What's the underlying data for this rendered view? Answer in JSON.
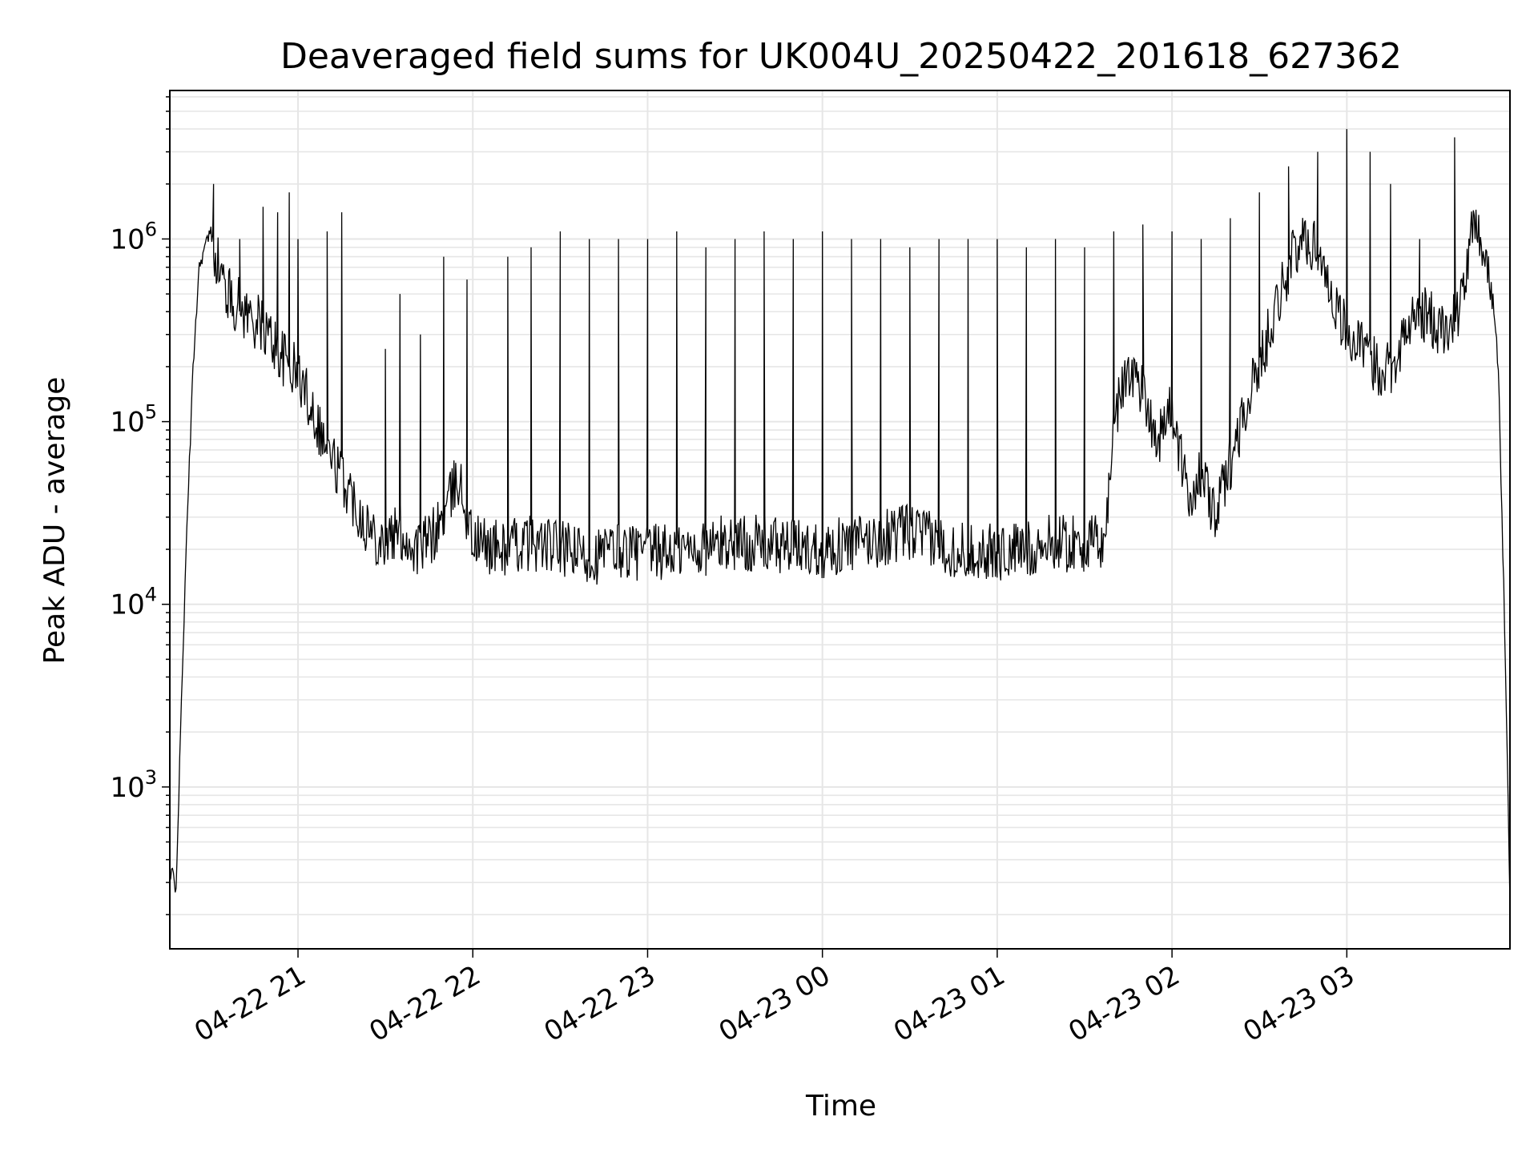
{
  "chart_data": {
    "type": "line",
    "title": "Deaveraged field sums for UK004U_20250422_201618_627362",
    "xlabel": "Time",
    "ylabel": "Peak ADU - average",
    "yscale": "log",
    "xlim": [
      "2025-04-22 20:16",
      "2025-04-23 03:56"
    ],
    "ylim": [
      130,
      6500000
    ],
    "grid": true,
    "x_ticks": [
      {
        "value": "2025-04-22 21:00",
        "label": "04-22 21"
      },
      {
        "value": "2025-04-22 22:00",
        "label": "04-22 22"
      },
      {
        "value": "2025-04-22 23:00",
        "label": "04-22 23"
      },
      {
        "value": "2025-04-23 00:00",
        "label": "04-23 00"
      },
      {
        "value": "2025-04-23 01:00",
        "label": "04-23 01"
      },
      {
        "value": "2025-04-23 02:00",
        "label": "04-23 02"
      },
      {
        "value": "2025-04-23 03:00",
        "label": "04-23 03"
      }
    ],
    "y_ticks": [
      {
        "value": 1000,
        "label": "10",
        "exp": "3"
      },
      {
        "value": 10000,
        "label": "10",
        "exp": "4"
      },
      {
        "value": 100000,
        "label": "10",
        "exp": "5"
      },
      {
        "value": 1000000,
        "label": "10",
        "exp": "6"
      }
    ],
    "series": [
      {
        "color": "#000000",
        "x": [
          "2025-04-22 20:16",
          "2025-04-22 20:17",
          "2025-04-22 20:18",
          "2025-04-22 20:19",
          "2025-04-22 20:20",
          "2025-04-22 20:22",
          "2025-04-22 20:24",
          "2025-04-22 20:26",
          "2025-04-22 20:28",
          "2025-04-22 20:30",
          "2025-04-22 20:32",
          "2025-04-22 20:34",
          "2025-04-22 20:36",
          "2025-04-22 20:38",
          "2025-04-22 20:42",
          "2025-04-22 20:46",
          "2025-04-22 20:50",
          "2025-04-22 20:55",
          "2025-04-22 21:00",
          "2025-04-22 21:05",
          "2025-04-22 21:10",
          "2025-04-22 21:15",
          "2025-04-22 21:20",
          "2025-04-22 21:25",
          "2025-04-22 21:30",
          "2025-04-22 21:35",
          "2025-04-22 21:40",
          "2025-04-22 21:45",
          "2025-04-22 21:50",
          "2025-04-22 21:55",
          "2025-04-22 22:00",
          "2025-04-22 22:10",
          "2025-04-22 22:20",
          "2025-04-22 22:30",
          "2025-04-22 22:40",
          "2025-04-22 22:50",
          "2025-04-22 23:00",
          "2025-04-22 23:15",
          "2025-04-22 23:30",
          "2025-04-22 23:45",
          "2025-04-23 00:00",
          "2025-04-23 00:15",
          "2025-04-23 00:30",
          "2025-04-23 00:45",
          "2025-04-23 01:00",
          "2025-04-23 01:10",
          "2025-04-23 01:20",
          "2025-04-23 01:30",
          "2025-04-23 01:37",
          "2025-04-23 01:40",
          "2025-04-23 01:45",
          "2025-04-23 01:50",
          "2025-04-23 01:55",
          "2025-04-23 02:00",
          "2025-04-23 02:05",
          "2025-04-23 02:10",
          "2025-04-23 02:15",
          "2025-04-23 02:20",
          "2025-04-23 02:25",
          "2025-04-23 02:30",
          "2025-04-23 02:35",
          "2025-04-23 02:40",
          "2025-04-23 02:45",
          "2025-04-23 02:50",
          "2025-04-23 02:55",
          "2025-04-23 03:00",
          "2025-04-23 03:05",
          "2025-04-23 03:10",
          "2025-04-23 03:15",
          "2025-04-23 03:20",
          "2025-04-23 03:25",
          "2025-04-23 03:30",
          "2025-04-23 03:35",
          "2025-04-23 03:40",
          "2025-04-23 03:44",
          "2025-04-23 03:47",
          "2025-04-23 03:50",
          "2025-04-23 03:52",
          "2025-04-23 03:54",
          "2025-04-23 03:56"
        ],
        "y": [
          300,
          350,
          250,
          800,
          3000,
          30000,
          200000,
          700000,
          900000,
          1100000,
          800000,
          600000,
          500000,
          450000,
          400000,
          350000,
          300000,
          220000,
          180000,
          120000,
          70000,
          50000,
          35000,
          25000,
          22000,
          25000,
          20000,
          22000,
          30000,
          50000,
          22000,
          20000,
          22000,
          20000,
          18000,
          20000,
          19000,
          20000,
          22000,
          21000,
          20000,
          22000,
          25000,
          20000,
          19000,
          20000,
          22000,
          21000,
          22000,
          100000,
          200000,
          150000,
          80000,
          120000,
          40000,
          50000,
          30000,
          60000,
          120000,
          200000,
          400000,
          700000,
          1000000,
          900000,
          500000,
          300000,
          250000,
          200000,
          200000,
          300000,
          400000,
          350000,
          300000,
          500000,
          1300000,
          900000,
          500000,
          200000,
          10000,
          250
        ],
        "spikes": [
          {
            "x": "2025-04-22 20:31",
            "y": 2000000
          },
          {
            "x": "2025-04-22 20:40",
            "y": 1000000
          },
          {
            "x": "2025-04-22 20:48",
            "y": 1500000
          },
          {
            "x": "2025-04-22 20:53",
            "y": 1400000
          },
          {
            "x": "2025-04-22 20:57",
            "y": 1800000
          },
          {
            "x": "2025-04-22 21:00",
            "y": 1000000
          },
          {
            "x": "2025-04-22 21:10",
            "y": 1100000
          },
          {
            "x": "2025-04-22 21:15",
            "y": 1400000
          },
          {
            "x": "2025-04-22 21:30",
            "y": 250000
          },
          {
            "x": "2025-04-22 21:35",
            "y": 500000
          },
          {
            "x": "2025-04-22 21:42",
            "y": 300000
          },
          {
            "x": "2025-04-22 21:50",
            "y": 800000
          },
          {
            "x": "2025-04-22 21:58",
            "y": 600000
          },
          {
            "x": "2025-04-22 22:12",
            "y": 800000
          },
          {
            "x": "2025-04-22 22:20",
            "y": 900000
          },
          {
            "x": "2025-04-22 22:30",
            "y": 1100000
          },
          {
            "x": "2025-04-22 22:40",
            "y": 1000000
          },
          {
            "x": "2025-04-22 22:50",
            "y": 1000000
          },
          {
            "x": "2025-04-22 23:00",
            "y": 1000000
          },
          {
            "x": "2025-04-22 23:10",
            "y": 1100000
          },
          {
            "x": "2025-04-22 23:20",
            "y": 900000
          },
          {
            "x": "2025-04-22 23:30",
            "y": 1000000
          },
          {
            "x": "2025-04-22 23:40",
            "y": 1100000
          },
          {
            "x": "2025-04-22 23:50",
            "y": 1000000
          },
          {
            "x": "2025-04-23 00:00",
            "y": 1100000
          },
          {
            "x": "2025-04-23 00:10",
            "y": 1000000
          },
          {
            "x": "2025-04-23 00:20",
            "y": 1000000
          },
          {
            "x": "2025-04-23 00:30",
            "y": 900000
          },
          {
            "x": "2025-04-23 00:40",
            "y": 1000000
          },
          {
            "x": "2025-04-23 00:50",
            "y": 1000000
          },
          {
            "x": "2025-04-23 01:00",
            "y": 1000000
          },
          {
            "x": "2025-04-23 01:10",
            "y": 900000
          },
          {
            "x": "2025-04-23 01:20",
            "y": 1000000
          },
          {
            "x": "2025-04-23 01:30",
            "y": 900000
          },
          {
            "x": "2025-04-23 01:40",
            "y": 1100000
          },
          {
            "x": "2025-04-23 01:50",
            "y": 1200000
          },
          {
            "x": "2025-04-23 02:00",
            "y": 1100000
          },
          {
            "x": "2025-04-23 02:10",
            "y": 1000000
          },
          {
            "x": "2025-04-23 02:20",
            "y": 1300000
          },
          {
            "x": "2025-04-23 02:30",
            "y": 1800000
          },
          {
            "x": "2025-04-23 02:40",
            "y": 2500000
          },
          {
            "x": "2025-04-23 02:50",
            "y": 3000000
          },
          {
            "x": "2025-04-23 03:00",
            "y": 4000000
          },
          {
            "x": "2025-04-23 03:08",
            "y": 3000000
          },
          {
            "x": "2025-04-23 03:15",
            "y": 2000000
          },
          {
            "x": "2025-04-23 03:25",
            "y": 1000000
          },
          {
            "x": "2025-04-23 03:37",
            "y": 3600000
          }
        ]
      }
    ]
  }
}
